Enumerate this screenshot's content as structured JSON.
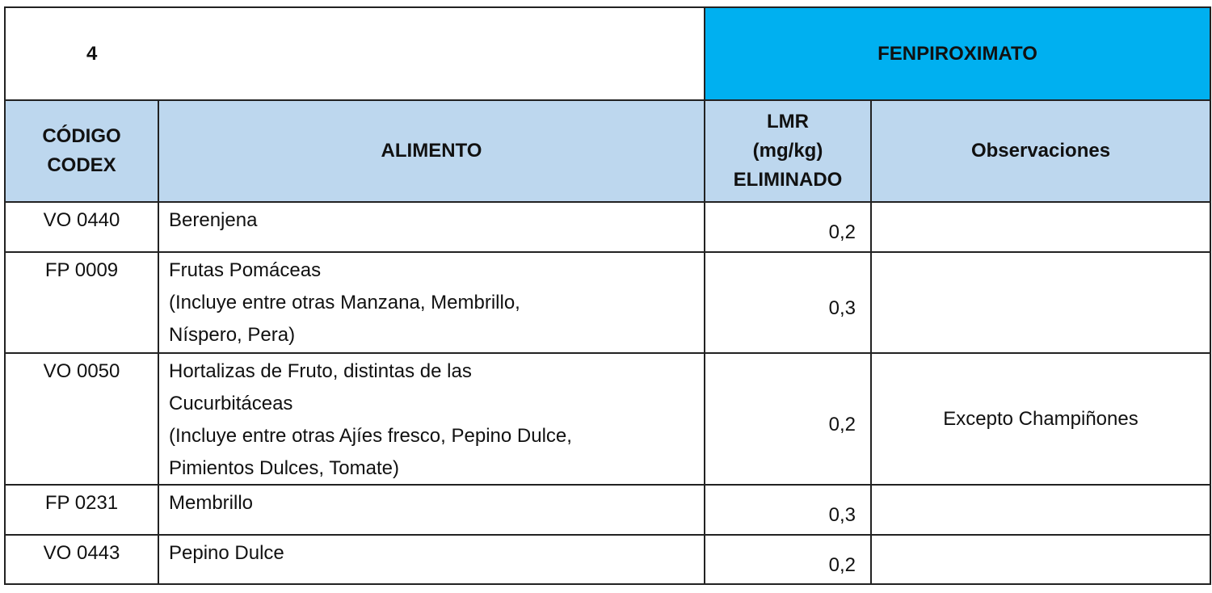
{
  "title_row": {
    "number": "4",
    "substance": "FENPIROXIMATO"
  },
  "header": {
    "code": [
      "CÓDIGO",
      "CODEX"
    ],
    "food": "ALIMENTO",
    "lmr": [
      "LMR",
      "(mg/kg)",
      "ELIMINADO"
    ],
    "observations": "Observaciones"
  },
  "rows": [
    {
      "code": "VO 0440",
      "food": [
        "Berenjena"
      ],
      "lmr": "0,2"
    },
    {
      "code": "FP 0009",
      "food": [
        "Frutas Pomáceas",
        "(Incluye entre otras Manzana, Membrillo,",
        "Níspero, Pera)"
      ],
      "lmr": "0,3"
    },
    {
      "code": "VO 0050",
      "food": [
        "Hortalizas de Fruto, distintas de las",
        "Cucurbitáceas",
        "(Incluye entre otras Ajíes fresco, Pepino Dulce,",
        "Pimientos Dulces, Tomate)"
      ],
      "lmr": "0,2",
      "observations": "Excepto Champiñones"
    },
    {
      "code": "FP 0231",
      "food": [
        "Membrillo"
      ],
      "lmr": "0,3"
    },
    {
      "code": "VO 0443",
      "food": [
        "Pepino Dulce"
      ],
      "lmr": "0,2"
    }
  ]
}
